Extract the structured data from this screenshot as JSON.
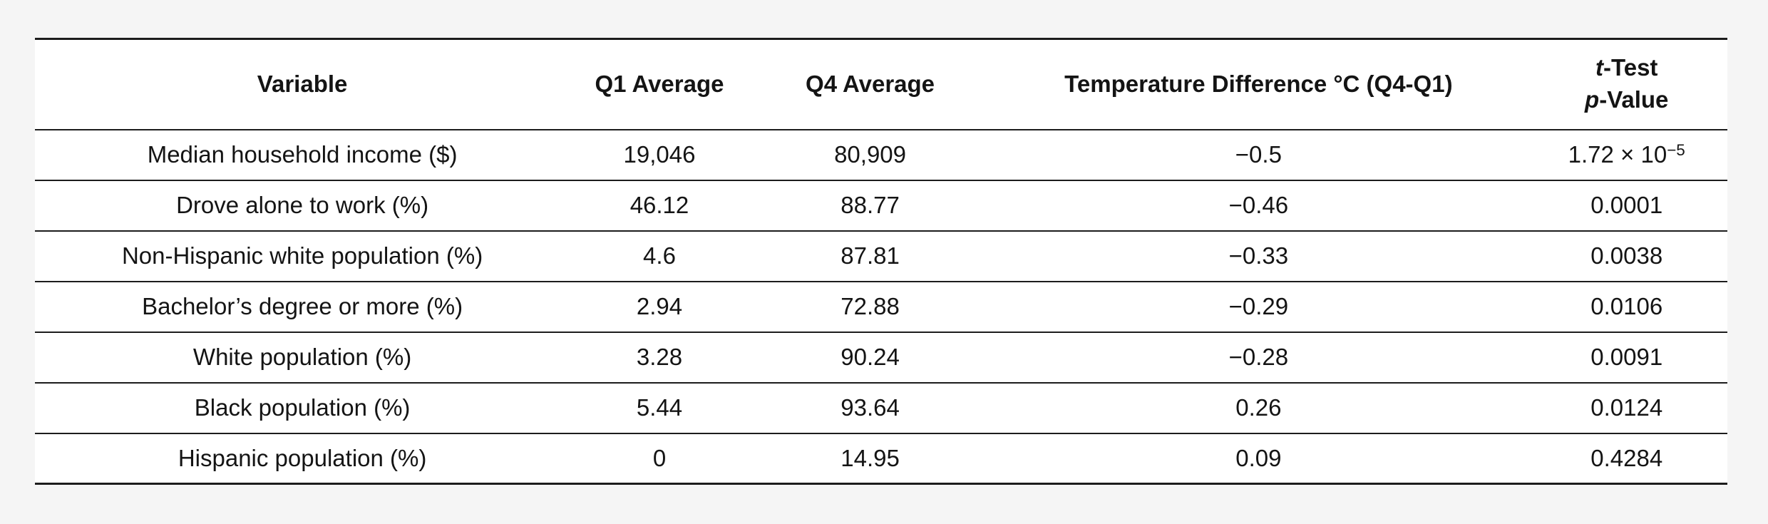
{
  "page": {
    "background_color": "#f5f5f5"
  },
  "table": {
    "style": {
      "background": "#ffffff",
      "border_color": "#1c1c1c",
      "text_color": "#141414"
    },
    "headers": {
      "variable": "Variable",
      "q1": "Q1 Average",
      "q4": "Q4 Average",
      "temp": "Temperature Difference °C (Q4-Q1)",
      "ttest_line1_italic": "t",
      "ttest_line1_rest": "-Test",
      "ttest_line2_italic": "p",
      "ttest_line2_rest": "-Value"
    },
    "rows": [
      {
        "variable": "Median household income ($)",
        "q1": "19,046",
        "q4": "80,909",
        "temp": "−0.5",
        "p": "1.72 × 10",
        "p_sup": "−5"
      },
      {
        "variable": "Drove alone to work (%)",
        "q1": "46.12",
        "q4": "88.77",
        "temp": "−0.46",
        "p": "0.0001"
      },
      {
        "variable": "Non-Hispanic white population (%)",
        "q1": "4.6",
        "q4": "87.81",
        "temp": "−0.33",
        "p": "0.0038"
      },
      {
        "variable": "Bachelor’s degree or more (%)",
        "q1": "2.94",
        "q4": "72.88",
        "temp": "−0.29",
        "p": "0.0106"
      },
      {
        "variable": "White population (%)",
        "q1": "3.28",
        "q4": "90.24",
        "temp": "−0.28",
        "p": "0.0091"
      },
      {
        "variable": "Black population (%)",
        "q1": "5.44",
        "q4": "93.64",
        "temp": "0.26",
        "p": "0.0124"
      },
      {
        "variable": "Hispanic population (%)",
        "q1": "0",
        "q4": "14.95",
        "temp": "0.09",
        "p": "0.4284"
      }
    ]
  }
}
